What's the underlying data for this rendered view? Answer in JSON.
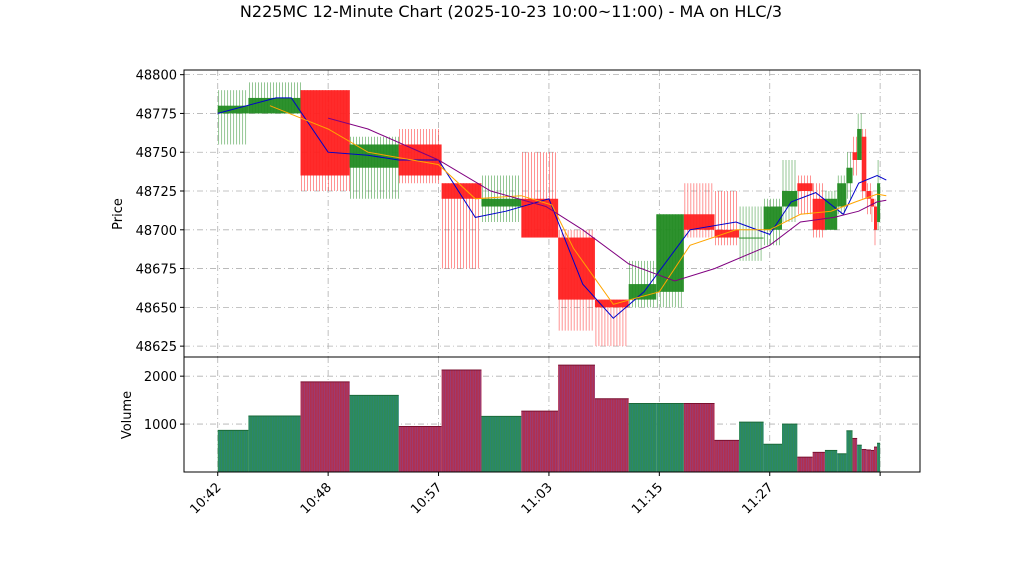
{
  "chart_data": {
    "type": "candlestick",
    "title": "N225MC 12-Minute Chart (2025-10-23 10:00~11:00) - MA on HLC/3",
    "price_panel": {
      "ylabel": "Price",
      "ylim": [
        48618,
        48803
      ],
      "yticks": [
        48625,
        48650,
        48675,
        48700,
        48725,
        48750,
        48775,
        48800
      ],
      "grid": true
    },
    "volume_panel": {
      "ylabel": "Volume",
      "ylim": [
        0,
        2400
      ],
      "yticks": [
        1000,
        2000
      ],
      "grid": true
    },
    "xlim": [
      0,
      240
    ],
    "xticks": [
      {
        "x": 11,
        "label": "10:42"
      },
      {
        "x": 47,
        "label": "10:48"
      },
      {
        "x": 83,
        "label": "10:57"
      },
      {
        "x": 119,
        "label": "11:03"
      },
      {
        "x": 155,
        "label": "11:15"
      },
      {
        "x": 191,
        "label": "11:27"
      },
      {
        "x": 227,
        "label": ""
      }
    ],
    "candles": [
      {
        "x0": 11,
        "x1": 21,
        "open": 48775,
        "high": 48790,
        "low": 48755,
        "close": 48780,
        "volume": 870
      },
      {
        "x0": 21,
        "x1": 38,
        "open": 48775,
        "high": 48795,
        "low": 48775,
        "close": 48785,
        "volume": 1170
      },
      {
        "x0": 38,
        "x1": 54,
        "open": 48790,
        "high": 48790,
        "low": 48725,
        "close": 48735,
        "volume": 1880
      },
      {
        "x0": 54,
        "x1": 70,
        "open": 48740,
        "high": 48760,
        "low": 48720,
        "close": 48755,
        "volume": 1600
      },
      {
        "x0": 70,
        "x1": 84,
        "open": 48755,
        "high": 48765,
        "low": 48730,
        "close": 48735,
        "volume": 950
      },
      {
        "x0": 84,
        "x1": 97,
        "open": 48730,
        "high": 48730,
        "low": 48675,
        "close": 48720,
        "volume": 2130
      },
      {
        "x0": 97,
        "x1": 110,
        "open": 48715,
        "high": 48735,
        "low": 48705,
        "close": 48720,
        "volume": 1160
      },
      {
        "x0": 110,
        "x1": 122,
        "open": 48720,
        "high": 48750,
        "low": 48695,
        "close": 48695,
        "volume": 1270
      },
      {
        "x0": 122,
        "x1": 134,
        "open": 48695,
        "high": 48700,
        "low": 48635,
        "close": 48655,
        "volume": 2230
      },
      {
        "x0": 134,
        "x1": 145,
        "open": 48655,
        "high": 48655,
        "low": 48625,
        "close": 48650,
        "volume": 1530
      },
      {
        "x0": 145,
        "x1": 154,
        "open": 48655,
        "high": 48680,
        "low": 48650,
        "close": 48665,
        "volume": 1430
      },
      {
        "x0": 154,
        "x1": 163,
        "open": 48660,
        "high": 48710,
        "low": 48650,
        "close": 48710,
        "volume": 1430
      },
      {
        "x0": 163,
        "x1": 173,
        "open": 48710,
        "high": 48730,
        "low": 48695,
        "close": 48700,
        "volume": 1430
      },
      {
        "x0": 173,
        "x1": 181,
        "open": 48700,
        "high": 48725,
        "low": 48690,
        "close": 48695,
        "volume": 660
      },
      {
        "x0": 181,
        "x1": 189,
        "open": 48695,
        "high": 48715,
        "low": 48680,
        "close": 48695,
        "volume": 1040
      },
      {
        "x0": 189,
        "x1": 195,
        "open": 48700,
        "high": 48720,
        "low": 48690,
        "close": 48715,
        "volume": 580
      },
      {
        "x0": 195,
        "x1": 200,
        "open": 48715,
        "high": 48745,
        "low": 48705,
        "close": 48725,
        "volume": 1000
      },
      {
        "x0": 200,
        "x1": 205,
        "open": 48730,
        "high": 48735,
        "low": 48710,
        "close": 48725,
        "volume": 310
      },
      {
        "x0": 205,
        "x1": 209,
        "open": 48720,
        "high": 48730,
        "low": 48695,
        "close": 48700,
        "volume": 410
      },
      {
        "x0": 209,
        "x1": 213,
        "open": 48700,
        "high": 48725,
        "low": 48700,
        "close": 48720,
        "volume": 450
      },
      {
        "x0": 213,
        "x1": 216,
        "open": 48715,
        "high": 48735,
        "low": 48710,
        "close": 48730,
        "volume": 380
      },
      {
        "x0": 216,
        "x1": 218,
        "open": 48730,
        "high": 48750,
        "low": 48720,
        "close": 48740,
        "volume": 860
      },
      {
        "x0": 218,
        "x1": 219.5,
        "open": 48750,
        "high": 48760,
        "low": 48735,
        "close": 48745,
        "volume": 700
      },
      {
        "x0": 219.5,
        "x1": 221,
        "open": 48745,
        "high": 48775,
        "low": 48745,
        "close": 48765,
        "volume": 560
      },
      {
        "x0": 221,
        "x1": 222.5,
        "open": 48760,
        "high": 48765,
        "low": 48720,
        "close": 48725,
        "volume": 470
      },
      {
        "x0": 222.5,
        "x1": 224,
        "open": 48725,
        "high": 48730,
        "low": 48710,
        "close": 48720,
        "volume": 460
      },
      {
        "x0": 224,
        "x1": 225,
        "open": 48720,
        "high": 48725,
        "low": 48705,
        "close": 48715,
        "volume": 450
      },
      {
        "x0": 225,
        "x1": 226,
        "open": 48715,
        "high": 48720,
        "low": 48690,
        "close": 48700,
        "volume": 520
      },
      {
        "x0": 226,
        "x1": 227,
        "open": 48705,
        "high": 48745,
        "low": 48700,
        "close": 48730,
        "volume": 600
      }
    ],
    "ma_lines": [
      {
        "color": "#0000cc",
        "points": [
          [
            11,
            48775
          ],
          [
            30,
            48785
          ],
          [
            35,
            48785
          ],
          [
            47,
            48750
          ],
          [
            60,
            48748
          ],
          [
            70,
            48745
          ],
          [
            83,
            48745
          ],
          [
            95,
            48708
          ],
          [
            105,
            48712
          ],
          [
            119,
            48720
          ],
          [
            130,
            48665
          ],
          [
            140,
            48643
          ],
          [
            150,
            48660
          ],
          [
            165,
            48700
          ],
          [
            180,
            48705
          ],
          [
            191,
            48697
          ],
          [
            198,
            48718
          ],
          [
            206,
            48724
          ],
          [
            215,
            48710
          ],
          [
            220,
            48730
          ],
          [
            226,
            48735
          ],
          [
            229,
            48732
          ]
        ]
      },
      {
        "color": "#ffa500",
        "points": [
          [
            28,
            48780
          ],
          [
            47,
            48765
          ],
          [
            60,
            48750
          ],
          [
            83,
            48742
          ],
          [
            95,
            48720
          ],
          [
            110,
            48722
          ],
          [
            120,
            48716
          ],
          [
            127,
            48688
          ],
          [
            140,
            48652
          ],
          [
            155,
            48660
          ],
          [
            165,
            48690
          ],
          [
            180,
            48700
          ],
          [
            191,
            48700
          ],
          [
            201,
            48710
          ],
          [
            211,
            48712
          ],
          [
            219,
            48718
          ],
          [
            226,
            48723
          ],
          [
            229,
            48722
          ]
        ]
      },
      {
        "color": "#800080",
        "points": [
          [
            47,
            48772
          ],
          [
            60,
            48765
          ],
          [
            83,
            48745
          ],
          [
            100,
            48725
          ],
          [
            118,
            48715
          ],
          [
            130,
            48700
          ],
          [
            145,
            48678
          ],
          [
            160,
            48667
          ],
          [
            173,
            48675
          ],
          [
            191,
            48690
          ],
          [
            201,
            48705
          ],
          [
            212,
            48708
          ],
          [
            220,
            48712
          ],
          [
            226,
            48718
          ],
          [
            229,
            48719
          ]
        ]
      }
    ]
  }
}
